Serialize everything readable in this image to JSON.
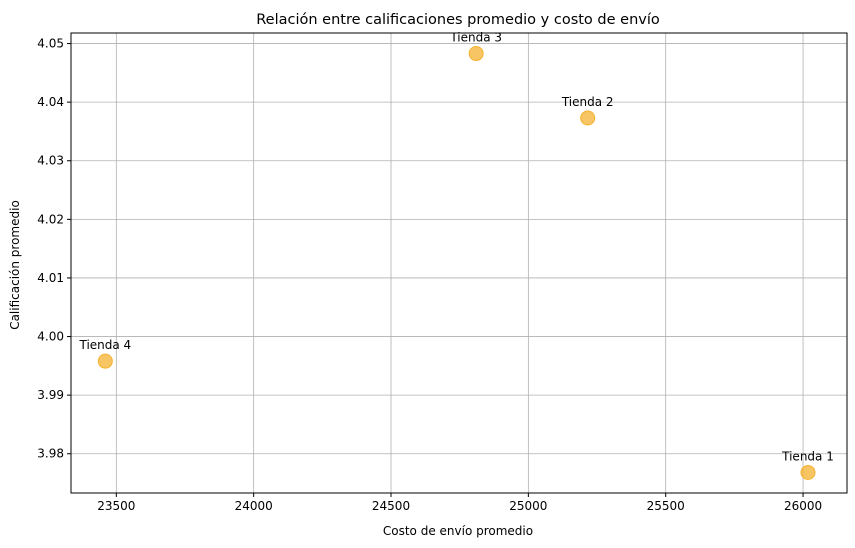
{
  "chart_data": {
    "type": "scatter",
    "title": "Relación entre calificaciones promedio y costo de envío",
    "xlabel": "Costo de envío promedio",
    "ylabel": "Calificación promedio",
    "xlim": [
      23335,
      26160
    ],
    "ylim": [
      3.9733,
      4.0518
    ],
    "xticks": [
      23500,
      24000,
      24500,
      25000,
      25500,
      26000
    ],
    "yticks": [
      3.98,
      3.99,
      4.0,
      4.01,
      4.02,
      4.03,
      4.04,
      4.05
    ],
    "ytick_labels": [
      "3.98",
      "3.99",
      "4.00",
      "4.01",
      "4.02",
      "4.03",
      "4.04",
      "4.05"
    ],
    "grid": true,
    "marker_color": "#f6b230",
    "points": [
      {
        "label": "Tienda 1",
        "x": 26018,
        "y": 3.9768
      },
      {
        "label": "Tienda 2",
        "x": 25216,
        "y": 4.0373
      },
      {
        "label": "Tienda 3",
        "x": 24810,
        "y": 4.0483
      },
      {
        "label": "Tienda 4",
        "x": 23460,
        "y": 3.9958
      }
    ]
  }
}
